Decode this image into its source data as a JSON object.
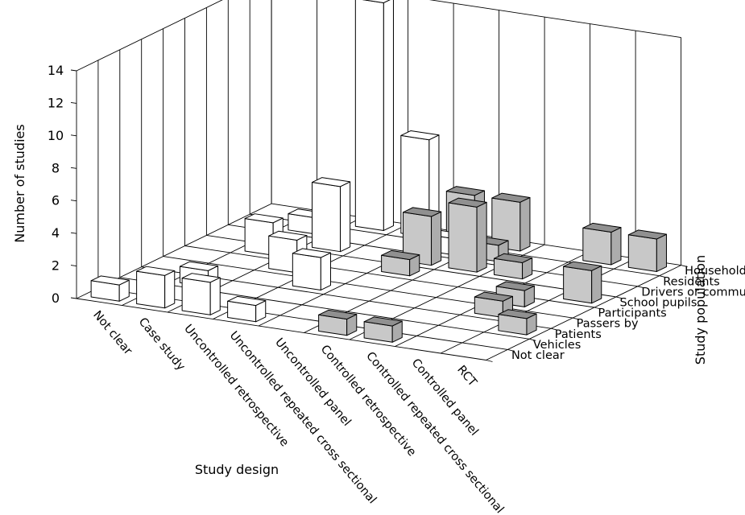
{
  "chart_data": {
    "type": "bar3d",
    "title": "",
    "xlabel": "Study design",
    "ylabel": "Number of studies",
    "zlabel": "Study population",
    "ylim": [
      0,
      14
    ],
    "yticks": [
      "0",
      "2",
      "4",
      "6",
      "8",
      "10",
      "12",
      "14"
    ],
    "categories": [
      "Not clear",
      "Case study",
      "Uncontrolled retrospective",
      "Uncontrolled repeated cross sectional",
      "Uncontrolled panel",
      "Controlled retrospective",
      "Controlled repeated cross sectional",
      "Controlled panel",
      "RCT"
    ],
    "depth_categories": [
      "Not clear",
      "Vehicles",
      "Patients",
      "Passers by",
      "Participants",
      "School pupils",
      "Drivers or commuters",
      "Residents",
      "Households"
    ],
    "series": [
      {
        "group": "uncontrolled",
        "color": "#ffffff",
        "bars": [
          {
            "x": "Not clear",
            "depth": "Not clear",
            "value": 1
          },
          {
            "x": "Case study",
            "depth": "Not clear",
            "value": 2
          },
          {
            "x": "Case study",
            "depth": "Patients",
            "value": 1
          },
          {
            "x": "Case study",
            "depth": "School pupils",
            "value": 2
          },
          {
            "x": "Case study",
            "depth": "Residents",
            "value": 1
          },
          {
            "x": "Uncontrolled retrospective",
            "depth": "Not clear",
            "value": 2
          },
          {
            "x": "Uncontrolled retrospective",
            "depth": "Participants",
            "value": 2
          },
          {
            "x": "Uncontrolled retrospective",
            "depth": "Drivers or commuters",
            "value": 4
          },
          {
            "x": "Uncontrolled retrospective",
            "depth": "Households",
            "value": 14
          },
          {
            "x": "Uncontrolled repeated cross sectional",
            "depth": "Not clear",
            "value": 1
          },
          {
            "x": "Uncontrolled repeated cross sectional",
            "depth": "Passers by",
            "value": 2
          },
          {
            "x": "Uncontrolled repeated cross sectional",
            "depth": "Households",
            "value": 6
          },
          {
            "x": "Uncontrolled panel",
            "depth": "Residents",
            "value": 1
          }
        ]
      },
      {
        "group": "controlled",
        "color": "#c8c8c8",
        "bars": [
          {
            "x": "Uncontrolled panel",
            "depth": "School pupils",
            "value": 1
          },
          {
            "x": "Uncontrolled panel",
            "depth": "Drivers or commuters",
            "value": 3
          },
          {
            "x": "Uncontrolled panel",
            "depth": "Households",
            "value": 3
          },
          {
            "x": "Controlled retrospective",
            "depth": "Not clear",
            "value": 1
          },
          {
            "x": "Controlled retrospective",
            "depth": "Drivers or commuters",
            "value": 4
          },
          {
            "x": "Controlled retrospective",
            "depth": "Residents",
            "value": 1
          },
          {
            "x": "Controlled retrospective",
            "depth": "Households",
            "value": 3
          },
          {
            "x": "Controlled repeated cross sectional",
            "depth": "Not clear",
            "value": 1
          },
          {
            "x": "Controlled repeated cross sectional",
            "depth": "Drivers or commuters",
            "value": 1
          },
          {
            "x": "Controlled panel",
            "depth": "Passers by",
            "value": 1
          },
          {
            "x": "Controlled panel",
            "depth": "Participants",
            "value": 1
          },
          {
            "x": "Controlled panel",
            "depth": "Households",
            "value": 2
          },
          {
            "x": "RCT",
            "depth": "Patients",
            "value": 1
          },
          {
            "x": "RCT",
            "depth": "School pupils",
            "value": 2
          },
          {
            "x": "RCT",
            "depth": "Households",
            "value": 2
          }
        ]
      }
    ],
    "grid": true
  }
}
